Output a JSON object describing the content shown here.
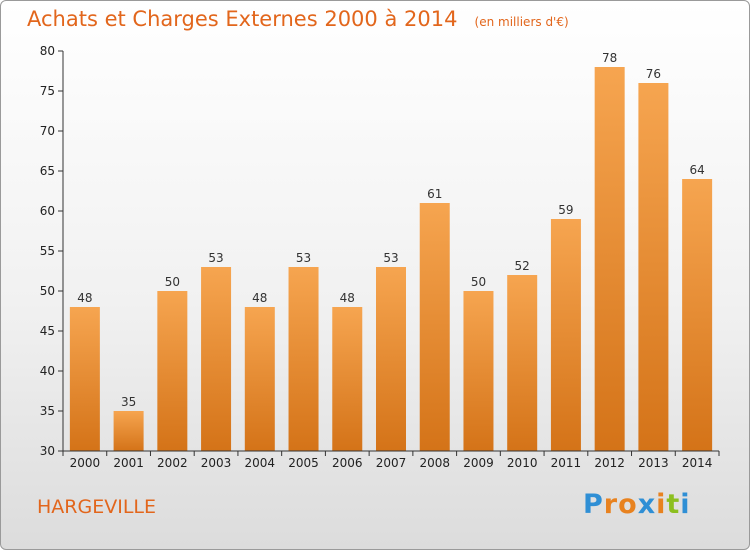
{
  "header": {
    "title": "Achats et Charges Externes 2000 à 2014",
    "subtitle": "(en milliers d'€)"
  },
  "footer": {
    "city": "HARGEVILLE",
    "logo_letters": [
      "P",
      "r",
      "o",
      "x",
      "i",
      "t",
      "i"
    ],
    "logo_colors": [
      "#2f8fd5",
      "#e8821f",
      "#e8821f",
      "#2f8fd5",
      "#e8821f",
      "#8cbf1f",
      "#2f8fd5"
    ]
  },
  "colors": {
    "bar_top": "#f6a550",
    "bar_bottom": "#d47318",
    "accent": "#e2661c"
  },
  "chart_data": {
    "type": "bar",
    "categories": [
      "2000",
      "2001",
      "2002",
      "2003",
      "2004",
      "2005",
      "2006",
      "2007",
      "2008",
      "2009",
      "2010",
      "2011",
      "2012",
      "2013",
      "2014"
    ],
    "values": [
      48,
      35,
      50,
      53,
      48,
      53,
      48,
      53,
      61,
      50,
      52,
      59,
      78,
      76,
      64
    ],
    "title": "Achats et Charges Externes 2000 à 2014",
    "xlabel": "",
    "ylabel": "",
    "ylim": [
      30,
      80
    ],
    "yticks": [
      30,
      35,
      40,
      45,
      50,
      55,
      60,
      65,
      70,
      75,
      80
    ],
    "grid": false,
    "data_labels": true
  }
}
